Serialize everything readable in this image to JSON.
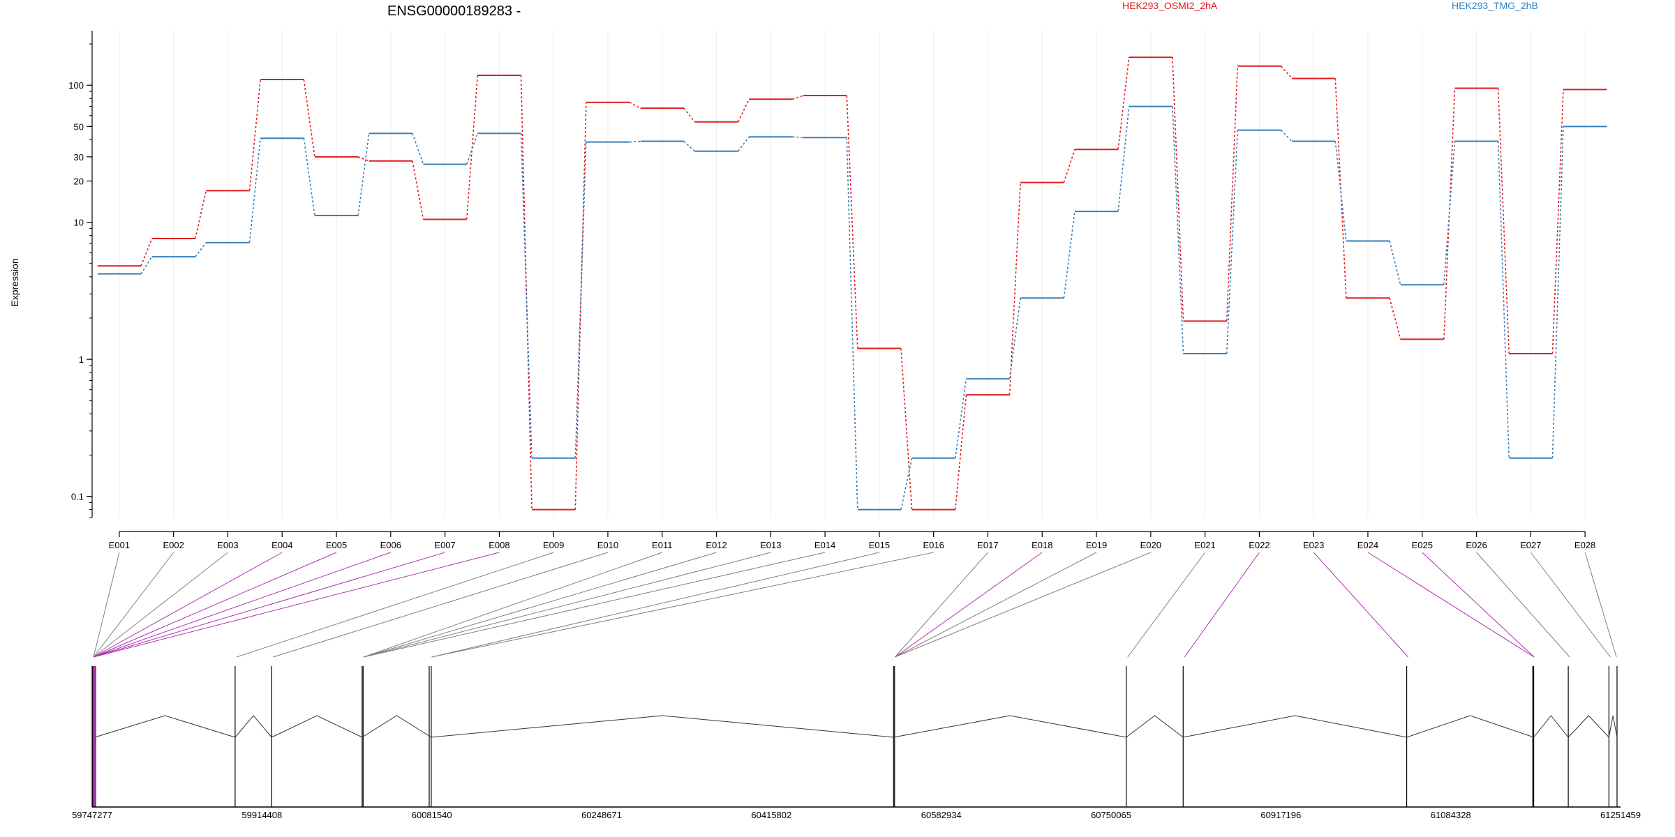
{
  "chart_data": {
    "type": "line",
    "title": "ENSG00000189283 -",
    "ylabel": "Expression",
    "yscale": "log",
    "ylim": [
      0.07,
      250
    ],
    "yticks": [
      0.1,
      1,
      10,
      20,
      30,
      50,
      100
    ],
    "grid": "vertical",
    "legend_placement": "top-right",
    "categories": [
      "E001",
      "E002",
      "E003",
      "E004",
      "E005",
      "E006",
      "E007",
      "E008",
      "E009",
      "E010",
      "E011",
      "E012",
      "E013",
      "E014",
      "E015",
      "E016",
      "E017",
      "E018",
      "E019",
      "E020",
      "E021",
      "E022",
      "E023",
      "E024",
      "E025",
      "E026",
      "E027",
      "E028"
    ],
    "series": [
      {
        "name": "HEK293_OSMI2_2hA",
        "color": "#e41a1c",
        "values": [
          4.8,
          7.6,
          17,
          110,
          30,
          28,
          10.5,
          118,
          0.08,
          75,
          68,
          54,
          79,
          84,
          1.2,
          0.08,
          0.55,
          19.5,
          34,
          160,
          1.9,
          138,
          112,
          2.8,
          1.4,
          95,
          1.1,
          93
        ]
      },
      {
        "name": "HEK293_TMG_2hB",
        "color": "#377eb8",
        "values": [
          4.2,
          5.6,
          7.1,
          41,
          11.2,
          44.5,
          26.5,
          44.5,
          0.19,
          38.5,
          39,
          33,
          42,
          41.5,
          0.08,
          0.19,
          0.72,
          2.8,
          12,
          70,
          1.1,
          47,
          39,
          7.3,
          3.5,
          39,
          0.19,
          50
        ]
      }
    ],
    "genomic_axis": {
      "ticks": [
        "59747277",
        "59914408",
        "60081540",
        "60248671",
        "60415802",
        "60582934",
        "60750065",
        "60917196",
        "61084328",
        "61251459"
      ],
      "range": [
        59747277,
        61251459
      ],
      "exon_positions": [
        59747277,
        59747277,
        59747277,
        59747277,
        59747277,
        59747277,
        59747277,
        59747277,
        59888000,
        59924000,
        60013000,
        60013000,
        60013000,
        60013000,
        60080000,
        60080000,
        60536000,
        60536000,
        60536000,
        60536000,
        60765000,
        60821000,
        61041000,
        61165000,
        61165000,
        61200000,
        61240000,
        61246000
      ],
      "exon_marks": [
        59747277,
        59748000,
        59749000,
        59750000,
        59888000,
        59924000,
        60013000,
        60014000,
        60079000,
        60081000,
        60536000,
        60537000,
        60765000,
        60821000,
        61041000,
        61165000,
        61166000,
        61200000,
        61240000,
        61248000
      ],
      "highlight_exons": [
        "E004",
        "E005",
        "E006",
        "E007",
        "E008",
        "E018",
        "E022",
        "E023",
        "E024",
        "E025"
      ],
      "colors": {
        "normal": "#808080",
        "highlight": "#b030b0"
      }
    }
  }
}
